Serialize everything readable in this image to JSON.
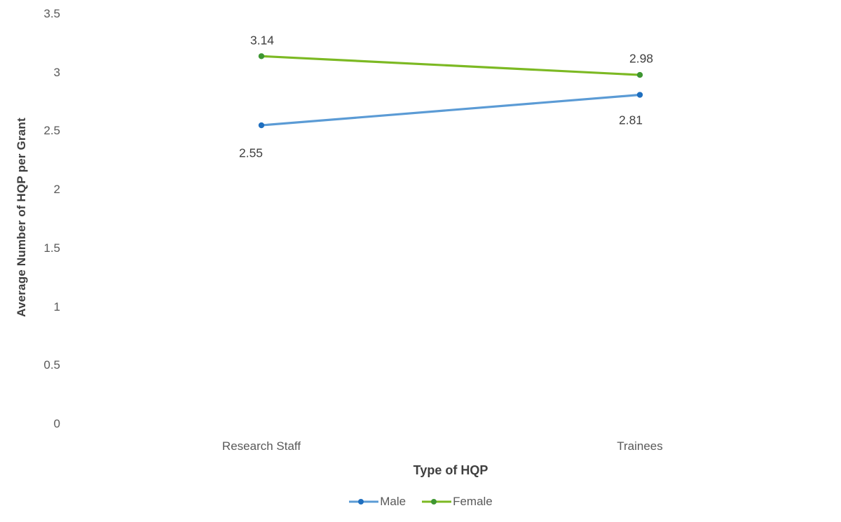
{
  "chart_data": {
    "type": "line",
    "title": "",
    "xlabel": "Type of HQP",
    "ylabel": "Average Number of HQP per Grant",
    "categories": [
      "Research Staff",
      "Trainees"
    ],
    "series": [
      {
        "name": "Male",
        "values": [
          2.55,
          2.81
        ],
        "data_labels": [
          "2.55",
          "2.81"
        ],
        "line_color": "#5B9BD5",
        "marker_color": "#1F6FBF"
      },
      {
        "name": "Female",
        "values": [
          3.14,
          2.98
        ],
        "data_labels": [
          "3.14",
          "2.98"
        ],
        "line_color": "#7CB923",
        "marker_color": "#3E9632"
      }
    ],
    "y_ticks": [
      {
        "label": "3.5",
        "value": 3.5
      },
      {
        "label": "3",
        "value": 3.0
      },
      {
        "label": "2.5",
        "value": 2.5
      },
      {
        "label": "2",
        "value": 2.0
      },
      {
        "label": "1.5",
        "value": 1.5
      },
      {
        "label": "1",
        "value": 1.0
      },
      {
        "label": "0.5",
        "value": 0.5
      },
      {
        "label": "0",
        "value": 0.0
      }
    ],
    "ylim": [
      0,
      3.5
    ],
    "grid": false,
    "legend_position": "bottom",
    "colors": {
      "tick_text": "#595959",
      "data_label_text": "#404040",
      "axis_title_text": "#3F3F3F",
      "background": "#FFFFFF"
    }
  }
}
